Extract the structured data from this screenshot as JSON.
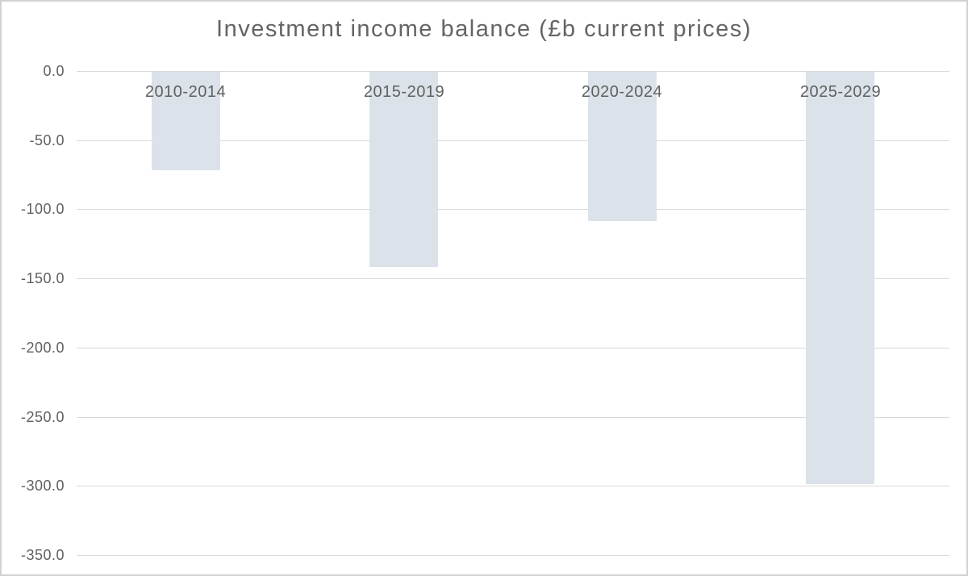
{
  "window": {
    "background": "#ffffff",
    "frame_border_color": "#d2d2d2"
  },
  "chart_data": {
    "type": "bar",
    "title": "Investment income balance (£b current prices)",
    "categories": [
      "2010-2014",
      "2015-2019",
      "2020-2024",
      "2025-2029"
    ],
    "values": [
      -71.5,
      -141.8,
      -108.6,
      -298.8
    ],
    "xlabel": "",
    "ylabel": "",
    "ylim": [
      0,
      -350
    ],
    "y_ticks": [
      {
        "value": 0,
        "label": "0.0"
      },
      {
        "value": -50,
        "label": "-50.0"
      },
      {
        "value": -100,
        "label": "-100.0"
      },
      {
        "value": -150,
        "label": "-150.0"
      },
      {
        "value": -200,
        "label": "-200.0"
      },
      {
        "value": -250,
        "label": "-250.0"
      },
      {
        "value": -300,
        "label": "-300.0"
      },
      {
        "value": -350,
        "label": "-350.0"
      }
    ],
    "grid": "horizontal",
    "legend": "none",
    "colors": {
      "bar_fill": "#dbe2e9",
      "gridline": "#d9d9d9",
      "tick_text": "#606060",
      "title_text": "#646464"
    }
  }
}
